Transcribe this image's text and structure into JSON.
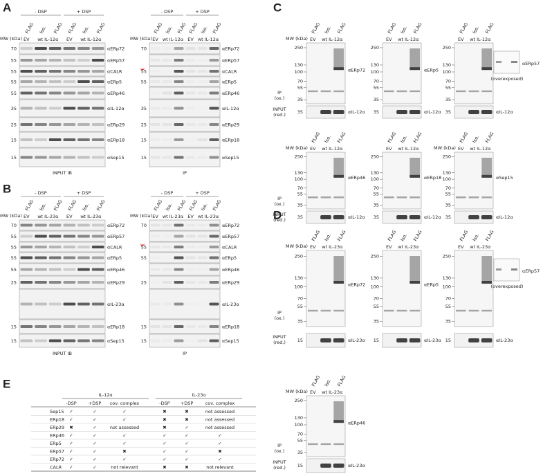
{
  "panels": [
    {
      "letter": "A",
      "blots": [
        {
          "groups": [
            "- DSP",
            "+ DSP"
          ],
          "lanes_top": [
            "FLAG",
            "Iso.",
            "FLAG",
            "FLAG",
            "Iso.",
            "FLAG"
          ],
          "lanes_bottom": [
            "EV",
            "wt IL-12α",
            "EV",
            "wt IL-12α"
          ],
          "mw_title": "MW (kDa)",
          "rows": [
            {
              "mw": 70,
              "antibody": "αERp72"
            },
            {
              "mw": 55,
              "antibody": "αERp57"
            },
            {
              "mw": 55,
              "antibody": "αCALR"
            },
            {
              "mw": 55,
              "antibody": "αERp5"
            },
            {
              "mw": 55,
              "antibody": "αERp46"
            },
            {
              "mw": 35,
              "antibody": "αIL-12α"
            },
            {
              "mw": 25,
              "antibody": "αERp29"
            },
            {
              "mw": 15,
              "antibody": "αERp18"
            },
            {
              "mw": 15,
              "antibody": "αSep15"
            }
          ],
          "footer": "INPUT IB"
        },
        {
          "groups": [
            "- DSP",
            "+ DSP"
          ],
          "lanes_top": [
            "FLAG",
            "Iso.",
            "FLAG",
            "FLAG",
            "Iso.",
            "FLAG"
          ],
          "lanes_bottom": [
            "EV",
            "wt IL-12α",
            "EV",
            "wt IL-12α"
          ],
          "mw_title": "MW (kDa)",
          "rows": [
            {
              "mw": 70,
              "antibody": "αERp72"
            },
            {
              "antibody": "αERp57"
            },
            {
              "mw": 55,
              "antibody": "αCALR",
              "arrow": true
            },
            {
              "mw": 55,
              "antibody": "αERp5"
            },
            {
              "antibody": "αERp46"
            },
            {
              "mw": 35,
              "antibody": "αIL-12α"
            },
            {
              "mw": 25,
              "antibody": "αERp29"
            },
            {
              "mw": 15,
              "antibody": "αERp18"
            },
            {
              "mw": 15,
              "antibody": "αSep15"
            }
          ],
          "footer": "IP"
        }
      ]
    },
    {
      "letter": "B",
      "blots": [
        {
          "groups": [
            "- DSP",
            "+ DSP"
          ],
          "lanes_top": [
            "FLAG",
            "Iso.",
            "FLAG",
            "FLAG",
            "Iso.",
            "FLAG"
          ],
          "lanes_bottom": [
            "EV",
            "wt IL-23α",
            "EV",
            "wt IL-23α"
          ],
          "mw_title": "MW (kDa)",
          "rows": [
            {
              "mw": 70,
              "antibody": "αERp72"
            },
            {
              "mw": 55,
              "antibody": "αERp57"
            },
            {
              "mw": 55,
              "antibody": "αCALR"
            },
            {
              "mw": 55,
              "antibody": "αERp5"
            },
            {
              "mw": 55,
              "antibody": "αERp46"
            },
            {
              "mw": 25,
              "antibody": "αERp29"
            },
            {
              "antibody": "αIL-23α"
            },
            {
              "mw": 15,
              "antibody": "αERp18"
            },
            {
              "mw": 15,
              "antibody": "αSep15"
            }
          ],
          "footer": "INPUT IB"
        },
        {
          "groups": [
            "- DSP",
            "+ DSP"
          ],
          "lanes_top": [
            "FLAG",
            "Iso.",
            "FLAG",
            "FLAG",
            "Iso.",
            "FLAG"
          ],
          "lanes_bottom": [
            "EV",
            "wt IL-23α",
            "EV",
            "wt IL-23α"
          ],
          "mw_title": "MW (kDa)",
          "rows": [
            {
              "mw": 70,
              "antibody": "αERp72"
            },
            {
              "antibody": "αERp57"
            },
            {
              "mw": 55,
              "antibody": "αCALR",
              "arrow": true
            },
            {
              "mw": 55,
              "antibody": "αERp5"
            },
            {
              "antibody": "αERp46"
            },
            {
              "mw": 25,
              "antibody": "αERp29"
            },
            {
              "antibody": "αIL-23α"
            },
            {
              "mw": 15,
              "antibody": "αERp18"
            },
            {
              "mw": 15,
              "antibody": "αSep15"
            }
          ],
          "footer": "IP"
        }
      ]
    },
    {
      "letter": "C",
      "blots": [
        {
          "lanes_top": [
            "FLAG",
            "Iso.",
            "FLAG"
          ],
          "lanes_bottom": [
            "EV",
            "wt IL-12α"
          ],
          "mw_title": "MW (kDa)",
          "ip_label": [
            "IP",
            "(ox.)"
          ],
          "ladder": [
            250,
            130,
            100,
            70,
            55,
            35
          ],
          "antibody": "αERp72",
          "input_label": [
            "INPUT",
            "(red.)"
          ],
          "input_ladder": [
            35
          ],
          "input_antibody": "αIL-12α"
        },
        {
          "lanes_top": [
            "FLAG",
            "Iso.",
            "FLAG"
          ],
          "lanes_bottom": [
            "EV",
            "wt IL-12α"
          ],
          "ladder": [
            250,
            130,
            100,
            70,
            55,
            35
          ],
          "antibody": "αERp5",
          "input_ladder": [
            35
          ],
          "input_antibody": "αIL-12α"
        },
        {
          "lanes_top": [
            "FLAG",
            "Iso.",
            "FLAG"
          ],
          "lanes_bottom": [
            "EV",
            "wt IL-12α"
          ],
          "ladder": [
            250,
            130,
            100,
            70,
            55,
            35
          ],
          "antibody": "αERp57",
          "note": "(overexposed)",
          "input_ladder": [
            35
          ],
          "input_antibody": "αIL-12α"
        },
        {
          "lanes_top": [
            "FLAG",
            "Iso.",
            "FLAG"
          ],
          "lanes_bottom": [
            "EV",
            "wt IL-12α"
          ],
          "mw_title": "MW (kDa)",
          "ip_label": [
            "IP",
            "(ox.)"
          ],
          "ladder": [
            250,
            130,
            100,
            70,
            55,
            35
          ],
          "antibody": "αERp46",
          "input_label": [
            "INPUT",
            "(red.)"
          ],
          "input_ladder": [
            35
          ],
          "input_antibody": "αIL-12α"
        },
        {
          "lanes_top": [
            "FLAG",
            "Iso.",
            "FLAG"
          ],
          "lanes_bottom": [
            "EV",
            "wt IL-12α"
          ],
          "ladder": [
            250,
            130,
            100,
            70,
            55,
            35
          ],
          "antibody": "αERp18",
          "input_ladder": [
            35
          ],
          "input_antibody": "αIL-12α"
        },
        {
          "lanes_top": [
            "FLAG",
            "Iso.",
            "FLAG"
          ],
          "lanes_bottom": [
            "EV",
            "wt IL-12α"
          ],
          "mw_title": "MW (kDa)",
          "ladder": [
            250,
            130,
            100,
            70,
            55,
            35
          ],
          "antibody": "αSep15",
          "input_ladder": [
            35
          ],
          "input_antibody": "αIL-12α"
        }
      ]
    },
    {
      "letter": "D",
      "blots": [
        {
          "lanes_top": [
            "FLAG",
            "Iso.",
            "FLAG"
          ],
          "lanes_bottom": [
            "EV",
            "wt IL-23α"
          ],
          "mw_title": "MW (kDa)",
          "ip_label": [
            "IP",
            "(ox.)"
          ],
          "ladder": [
            250,
            130,
            100,
            70,
            55,
            35
          ],
          "antibody": "αERp72",
          "input_label": [
            "INPUT",
            "(red.)"
          ],
          "input_ladder": [
            15
          ],
          "input_antibody": "αIL-23α"
        },
        {
          "lanes_top": [
            "FLAG",
            "Iso.",
            "FLAG"
          ],
          "lanes_bottom": [
            "EV",
            "wt IL-23α"
          ],
          "ladder": [
            250,
            130,
            100,
            70,
            55,
            35
          ],
          "antibody": "αERp5",
          "input_ladder": [
            15
          ],
          "input_antibody": "αIL-23α"
        },
        {
          "lanes_top": [
            "FLAG",
            "Iso.",
            "FLAG"
          ],
          "lanes_bottom": [
            "EV",
            "wt IL-23α"
          ],
          "ladder": [
            250,
            130,
            100,
            70,
            55,
            35
          ],
          "antibody": "αERp57",
          "note": "(overexposed)",
          "input_ladder": [
            15
          ],
          "input_antibody": "αIL-23α"
        },
        {
          "lanes_top": [
            "FLAG",
            "Iso.",
            "FLAG"
          ],
          "lanes_bottom": [
            "EV",
            "wt IL-23α"
          ],
          "mw_title": "MW (kDa)",
          "ip_label": [
            "IP",
            "(ox.)"
          ],
          "ladder": [
            250,
            130,
            100,
            70,
            55,
            35
          ],
          "antibody": "αERp46",
          "input_label": [
            "INPUT",
            "(red.)"
          ],
          "input_ladder": [
            15
          ],
          "input_antibody": "αIL-23α"
        }
      ]
    }
  ],
  "table": {
    "letter": "E",
    "groups": [
      "IL-12α",
      "IL-23α"
    ],
    "columns": [
      "-DSP",
      "+DSP",
      "cov. complex",
      "-DSP",
      "+DSP",
      "cov. complex"
    ],
    "rows": [
      {
        "name": "Sep15",
        "cells": [
          "✓",
          "✓",
          "✓",
          "✖",
          "✖",
          "not assessed"
        ]
      },
      {
        "name": "ERp18",
        "cells": [
          "✓",
          "✓",
          "✓",
          "✖",
          "✖",
          "not assessed"
        ]
      },
      {
        "name": "ERp29",
        "cells": [
          "✖",
          "✓",
          "not assessed",
          "✖",
          "✓",
          "not assessed"
        ]
      },
      {
        "name": "ERp46",
        "cells": [
          "✓",
          "✓",
          "✓",
          "✓",
          "✓",
          "✓"
        ]
      },
      {
        "name": "ERp5",
        "cells": [
          "✓",
          "✓",
          "✓",
          "✓",
          "✓",
          "✓"
        ]
      },
      {
        "name": "ERp57",
        "cells": [
          "✓",
          "✓",
          "✖",
          "✓",
          "✓",
          "✖"
        ]
      },
      {
        "name": "ERp72",
        "cells": [
          "✓",
          "✓",
          "✓",
          "✓",
          "✓",
          "✓"
        ]
      },
      {
        "name": "CALR",
        "cells": [
          "✓",
          "✓",
          "not relevant",
          "✖",
          "✖",
          "not relevant"
        ]
      }
    ]
  }
}
